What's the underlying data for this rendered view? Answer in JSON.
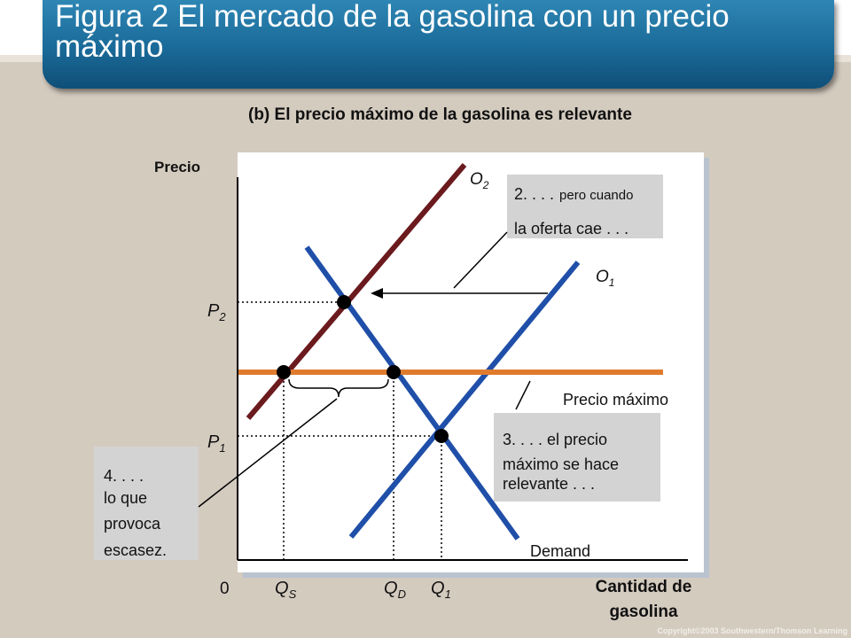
{
  "slide": {
    "title": "Figura 2 El mercado de la gasolina con un precio máximo",
    "subtitle": "(b) El precio máximo de la gasolina es relevante",
    "copyright": "Copyright©2003  Southwestern/Thomson Learning",
    "colors": {
      "background": "#d4cbbf",
      "title_bar": "#1a6a98",
      "supply_1": "#1f4fa8",
      "supply_2": "#6b1a1e",
      "demand": "#1f4fa8",
      "price_ceiling": "#e07b2e",
      "callout_box": "#d3d3d3"
    }
  },
  "diagram": {
    "y_axis_label": "Precio",
    "x_axis_label_line1": "Cantidad de",
    "x_axis_label_line2": "gasolina",
    "origin_label": "0",
    "price_labels": {
      "p2": {
        "main": "P",
        "sub": "2"
      },
      "p1": {
        "main": "P",
        "sub": "1"
      }
    },
    "quantity_labels": {
      "qs": {
        "main": "Q",
        "sub": "S"
      },
      "qd": {
        "main": "Q",
        "sub": "D"
      },
      "q1": {
        "main": "Q",
        "sub": "1"
      }
    },
    "curve_labels": {
      "o2": {
        "main": "O",
        "sub": "2"
      },
      "o1": {
        "main": "O",
        "sub": "1"
      },
      "demand": "Demand",
      "ceiling": "Precio máximo"
    },
    "callouts": {
      "c2_line1_a": "2. . . .",
      "c2_line1_b": "pero cuando",
      "c2_line2": "la oferta cae . . .",
      "c3_line1": "3. . . . el precio",
      "c3_line2": "máximo se hace",
      "c3_line3": "relevante . . .",
      "c4_line1": "4. . . .",
      "c4_line2": "lo que",
      "c4_line3": "provoca",
      "c4_line4": "escasez."
    }
  }
}
